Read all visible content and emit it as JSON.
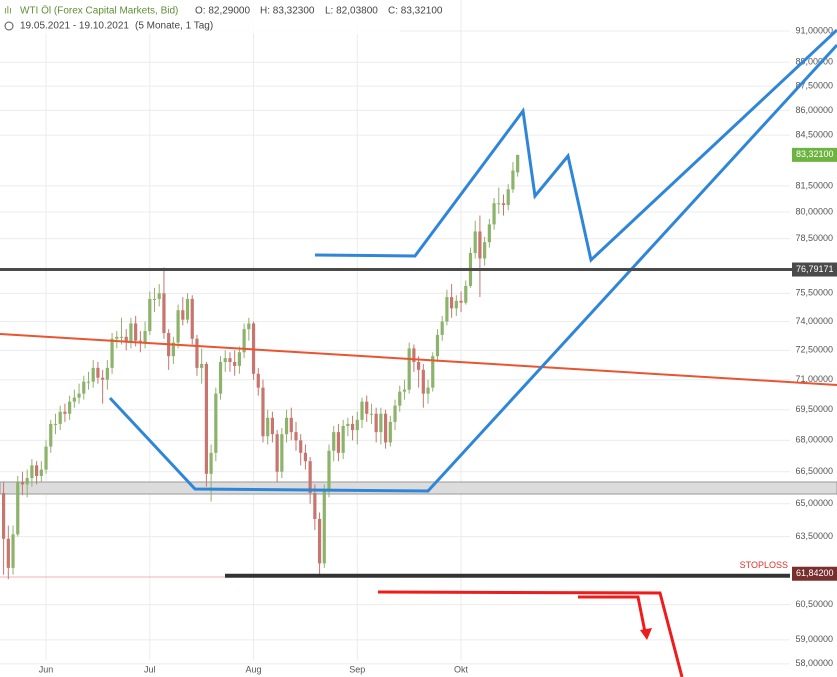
{
  "header": {
    "title": "WTI Öl (Forex Capital Markets, Bid)",
    "ohlc": [
      "O: 82,29000",
      "H: 83,32300",
      "L: 82,03800",
      "C: 83,32100"
    ],
    "range": "19.05.2021 - 19.10.2021",
    "period": "(5 Monate, 1 Tag)"
  },
  "chart_data": {
    "type": "candlestick",
    "categories": [
      null,
      null,
      null,
      null,
      null,
      null,
      null,
      null,
      null,
      "Jun",
      null,
      null,
      null,
      null,
      null,
      null,
      null,
      null,
      null,
      null,
      null,
      null,
      null,
      null,
      null,
      null,
      null,
      null,
      null,
      null,
      null,
      "Jul",
      null,
      null,
      null,
      null,
      null,
      null,
      null,
      null,
      null,
      null,
      null,
      null,
      null,
      null,
      null,
      null,
      null,
      null,
      null,
      null,
      null,
      "Aug",
      null,
      null,
      null,
      null,
      null,
      null,
      null,
      null,
      null,
      null,
      null,
      null,
      null,
      null,
      null,
      null,
      null,
      null,
      null,
      null,
      null,
      "Sep",
      null,
      null,
      null,
      null,
      null,
      null,
      null,
      null,
      null,
      null,
      null,
      null,
      null,
      null,
      null,
      null,
      null,
      null,
      null,
      null,
      null,
      "Okt",
      null,
      null,
      null,
      null,
      null,
      null,
      null,
      null,
      null,
      null,
      null,
      null
    ],
    "open": [
      65.5,
      63.4,
      62.1,
      63.6,
      66.0,
      65.9,
      66.2,
      66.8,
      66.3,
      66.6,
      67.7,
      68.8,
      68.8,
      69.4,
      69.3,
      69.9,
      70.1,
      70.3,
      70.9,
      70.9,
      71.6,
      71.1,
      71.0,
      71.6,
      73.1,
      73.2,
      73.2,
      72.9,
      73.9,
      73.0,
      72.9,
      73.5,
      75.2,
      75.2,
      75.5,
      73.4,
      72.2,
      72.9,
      74.6,
      74.1,
      75.2,
      73.1,
      71.6,
      71.8,
      66.4,
      67.4,
      70.3,
      71.9,
      72.1,
      71.9,
      71.7,
      72.4,
      73.6,
      73.9,
      71.3,
      70.6,
      68.2,
      69.1,
      68.3,
      66.5,
      68.3,
      69.1,
      68.4,
      68.0,
      67.4,
      67.0,
      65.5,
      64.3,
      62.3,
      65.6,
      67.5,
      68.4,
      67.4,
      68.7,
      68.8,
      68.5,
      69.0,
      69.9,
      69.3,
      69.3,
      68.4,
      69.3,
      67.9,
      68.9,
      69.7,
      70.4,
      70.5,
      72.6,
      71.9,
      71.5,
      70.3,
      70.6,
      72.2,
      73.3,
      74.0,
      75.3,
      74.7,
      75.1,
      75.0,
      75.9,
      77.7,
      78.9,
      77.4,
      78.3,
      79.3,
      80.5,
      80.5,
      80.4,
      81.3,
      82.29
    ],
    "high": [
      66.0,
      64.0,
      64.0,
      66.3,
      66.5,
      66.6,
      67.1,
      67.0,
      67.0,
      68.0,
      69.0,
      69.3,
      69.7,
      69.8,
      70.2,
      70.5,
      70.8,
      71.2,
      71.4,
      72.0,
      71.9,
      71.5,
      72.0,
      73.4,
      73.5,
      74.2,
      73.6,
      74.2,
      74.3,
      73.5,
      74.0,
      75.6,
      75.8,
      76.0,
      76.9,
      73.6,
      73.2,
      74.9,
      75.3,
      75.5,
      75.4,
      73.3,
      72.6,
      71.9,
      67.8,
      70.6,
      72.2,
      72.5,
      72.4,
      72.5,
      72.7,
      73.9,
      74.2,
      74.0,
      71.6,
      71.0,
      69.5,
      69.4,
      68.5,
      68.6,
      69.5,
      69.6,
      68.9,
      68.3,
      67.8,
      67.2,
      65.9,
      64.6,
      65.9,
      67.8,
      68.7,
      68.8,
      69.0,
      69.1,
      69.2,
      69.4,
      70.1,
      70.2,
      69.8,
      69.6,
      69.6,
      69.5,
      69.2,
      70.0,
      70.7,
      71.0,
      72.9,
      72.8,
      72.2,
      71.8,
      71.0,
      72.4,
      73.6,
      74.3,
      75.7,
      76.0,
      75.4,
      75.6,
      76.2,
      78.0,
      79.5,
      79.8,
      78.6,
      79.6,
      80.8,
      81.4,
      81.0,
      81.6,
      82.9,
      83.323
    ],
    "low": [
      61.8,
      61.6,
      61.8,
      63.5,
      65.4,
      65.3,
      65.8,
      65.9,
      66.0,
      66.4,
      67.4,
      68.3,
      68.5,
      68.9,
      69.0,
      69.6,
      69.8,
      70.0,
      70.5,
      70.6,
      70.8,
      69.8,
      70.5,
      71.3,
      72.6,
      72.8,
      72.5,
      72.6,
      72.7,
      72.4,
      72.6,
      73.3,
      74.5,
      74.8,
      73.1,
      71.5,
      71.8,
      72.6,
      73.8,
      73.9,
      72.8,
      71.2,
      70.8,
      65.8,
      65.1,
      67.0,
      70.0,
      71.4,
      71.4,
      71.2,
      71.3,
      72.1,
      73.0,
      71.0,
      70.2,
      67.9,
      67.8,
      67.9,
      66.0,
      66.2,
      67.9,
      68.0,
      67.5,
      66.8,
      66.6,
      65.0,
      63.8,
      61.8,
      62.1,
      65.3,
      67.0,
      67.0,
      67.1,
      68.2,
      68.0,
      67.8,
      68.6,
      68.9,
      68.8,
      67.9,
      67.8,
      67.6,
      67.7,
      68.5,
      69.4,
      70.0,
      70.3,
      71.4,
      70.6,
      69.6,
      69.8,
      70.4,
      71.9,
      73.0,
      73.8,
      74.2,
      74.3,
      74.5,
      74.9,
      75.8,
      77.4,
      75.3,
      77.0,
      78.0,
      79.0,
      79.9,
      79.8,
      80.1,
      81.1,
      82.038
    ],
    "close": [
      63.4,
      62.1,
      63.6,
      66.0,
      65.9,
      66.2,
      66.8,
      66.3,
      66.6,
      67.7,
      68.8,
      68.8,
      69.4,
      69.3,
      69.9,
      70.1,
      70.3,
      70.9,
      70.9,
      71.6,
      71.1,
      71.0,
      71.6,
      73.1,
      73.2,
      73.2,
      72.9,
      73.9,
      73.0,
      72.9,
      73.5,
      75.2,
      75.2,
      75.5,
      73.4,
      72.2,
      72.9,
      74.6,
      74.1,
      75.2,
      73.1,
      71.6,
      71.8,
      66.4,
      67.4,
      70.3,
      71.9,
      72.1,
      71.9,
      71.7,
      72.4,
      73.6,
      73.9,
      71.3,
      70.6,
      68.2,
      69.1,
      68.3,
      66.5,
      68.3,
      69.1,
      68.4,
      68.0,
      67.4,
      67.0,
      65.5,
      64.3,
      62.3,
      65.6,
      67.5,
      68.4,
      67.4,
      68.7,
      68.8,
      68.5,
      69.0,
      69.9,
      69.3,
      69.3,
      68.4,
      69.3,
      67.9,
      68.9,
      69.7,
      70.4,
      70.5,
      72.6,
      71.9,
      71.5,
      70.3,
      70.6,
      72.2,
      73.3,
      74.0,
      75.3,
      74.7,
      75.1,
      75.0,
      75.9,
      77.7,
      78.9,
      77.4,
      78.3,
      79.3,
      80.5,
      80.5,
      80.4,
      81.3,
      82.4,
      83.321
    ],
    "up_color": "#8db36b",
    "down_color": "#c7756e",
    "ylim": [
      57.46,
      93.03
    ],
    "log_y": true,
    "grid": true,
    "yticks": [
      {
        "value": 91,
        "label": "91,00000"
      },
      {
        "value": 89,
        "label": "89,00000"
      },
      {
        "value": 87.5,
        "label": "87,50000"
      },
      {
        "value": 86,
        "label": "86,00000"
      },
      {
        "value": 84.5,
        "label": "84,50000"
      },
      {
        "value": 81.5,
        "label": "81,50000"
      },
      {
        "value": 80,
        "label": "80,00000"
      },
      {
        "value": 78.5,
        "label": "78,50000"
      },
      {
        "value": 75.5,
        "label": "75,50000"
      },
      {
        "value": 74,
        "label": "74,00000"
      },
      {
        "value": 72.5,
        "label": "72,50000"
      },
      {
        "value": 71,
        "label": "71,00000"
      },
      {
        "value": 69.5,
        "label": "69,50000"
      },
      {
        "value": 68,
        "label": "68,00000"
      },
      {
        "value": 66.5,
        "label": "66,50000"
      },
      {
        "value": 65,
        "label": "65,00000"
      },
      {
        "value": 63.5,
        "label": "63,50000"
      },
      {
        "value": 60.5,
        "label": "60,50000"
      },
      {
        "value": 59,
        "label": "59,00000"
      },
      {
        "value": 58,
        "label": "58,00000"
      }
    ],
    "levels": [
      {
        "value": 83.321,
        "label": "83,32100",
        "color": "#6db33f"
      },
      {
        "value": 76.79171,
        "label": "76,79171",
        "color": "#4a4a4a"
      },
      {
        "value": 61.842,
        "label": "61,84200",
        "color": "#7a2f2f"
      }
    ],
    "annotation": "STOPLOSS"
  }
}
